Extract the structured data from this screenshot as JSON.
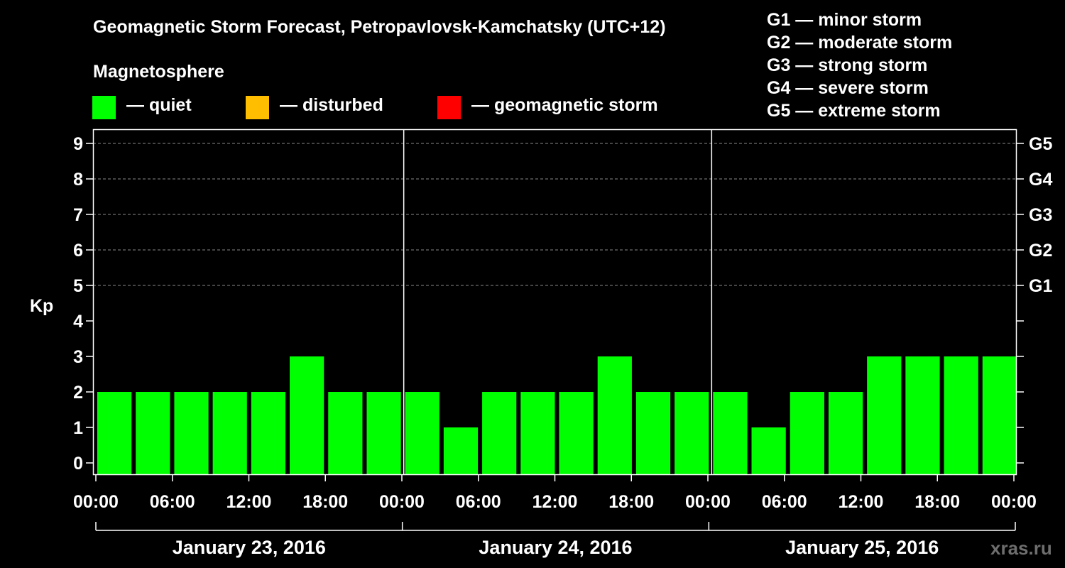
{
  "chart_data": {
    "type": "bar",
    "title": "Geomagnetic Storm Forecast, Petropavlovsk-Kamchatsky (UTC+12)",
    "ylabel": "Kp",
    "ylim": [
      0,
      9
    ],
    "y_ticks": [
      "0",
      "1",
      "2",
      "3",
      "4",
      "5",
      "6",
      "7",
      "8",
      "9"
    ],
    "right_ticks": [
      {
        "kp": 5,
        "label": "G1"
      },
      {
        "kp": 6,
        "label": "G2"
      },
      {
        "kp": 7,
        "label": "G3"
      },
      {
        "kp": 8,
        "label": "G4"
      },
      {
        "kp": 9,
        "label": "G5"
      }
    ],
    "x_tick_labels": [
      "00:00",
      "06:00",
      "12:00",
      "18:00",
      "00:00",
      "06:00",
      "12:00",
      "18:00",
      "00:00",
      "06:00",
      "12:00",
      "18:00",
      "00:00"
    ],
    "days": [
      "January 23, 2016",
      "January 24, 2016",
      "January 25, 2016"
    ],
    "values": [
      2,
      2,
      2,
      2,
      2,
      3,
      2,
      2,
      2,
      1,
      2,
      2,
      2,
      3,
      2,
      2,
      2,
      1,
      2,
      2,
      3,
      3,
      3,
      3
    ],
    "category_colors": {
      "quiet": "#00ff00",
      "disturbed": "#ffbf00",
      "storm": "#ff0000"
    }
  },
  "legend": {
    "title": "Magnetosphere",
    "items": [
      {
        "label": "— quiet",
        "color": "#00ff00"
      },
      {
        "label": "— disturbed",
        "color": "#ffbf00"
      },
      {
        "label": "— geomagnetic storm",
        "color": "#ff0000"
      }
    ]
  },
  "storm_levels": [
    "G1 — minor storm",
    "G2 — moderate storm",
    "G3 — strong storm",
    "G4 — severe storm",
    "G5 — extreme storm"
  ],
  "watermark": "xras.ru"
}
